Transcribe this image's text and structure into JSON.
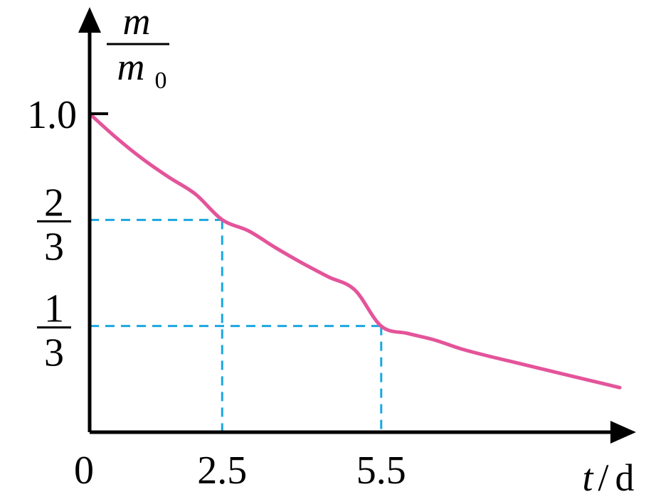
{
  "chart_data": {
    "type": "line",
    "ylabel": {
      "numerator": "m",
      "denominator": "m",
      "denominator_subscript": "0"
    },
    "xlabel": {
      "variable": "t",
      "separator": "/",
      "unit": "d"
    },
    "origin_label": "0",
    "x_ticks": [
      {
        "value": 2.5,
        "label": "2.5"
      },
      {
        "value": 5.5,
        "label": "5.5"
      }
    ],
    "y_ticks": [
      {
        "value": 1.0,
        "label": "1.0"
      },
      {
        "value": 0.6667,
        "numerator": "2",
        "denominator": "3"
      },
      {
        "value": 0.3333,
        "numerator": "1",
        "denominator": "3"
      }
    ],
    "xlim": [
      0,
      10.2
    ],
    "ylim": [
      0,
      1.25
    ],
    "series": [
      {
        "color": "#e4549a",
        "x": [
          0,
          0.5,
          1,
          1.5,
          2,
          2.5,
          3,
          3.5,
          4,
          4.5,
          5,
          5.5,
          6,
          6.5,
          7,
          7.5,
          8,
          8.5,
          9,
          9.5,
          10
        ],
        "y": [
          1.0,
          0.925,
          0.858,
          0.8,
          0.747,
          0.667,
          0.632,
          0.58,
          0.532,
          0.488,
          0.447,
          0.333,
          0.31,
          0.29,
          0.262,
          0.24,
          0.22,
          0.2,
          0.18,
          0.16,
          0.14
        ]
      }
    ],
    "guides": [
      {
        "x": 2.5,
        "y": 0.6667,
        "color": "#1aa7e0"
      },
      {
        "x": 5.5,
        "y": 0.3333,
        "color": "#1aa7e0"
      }
    ],
    "axis_color": "#000000",
    "grid": false
  }
}
